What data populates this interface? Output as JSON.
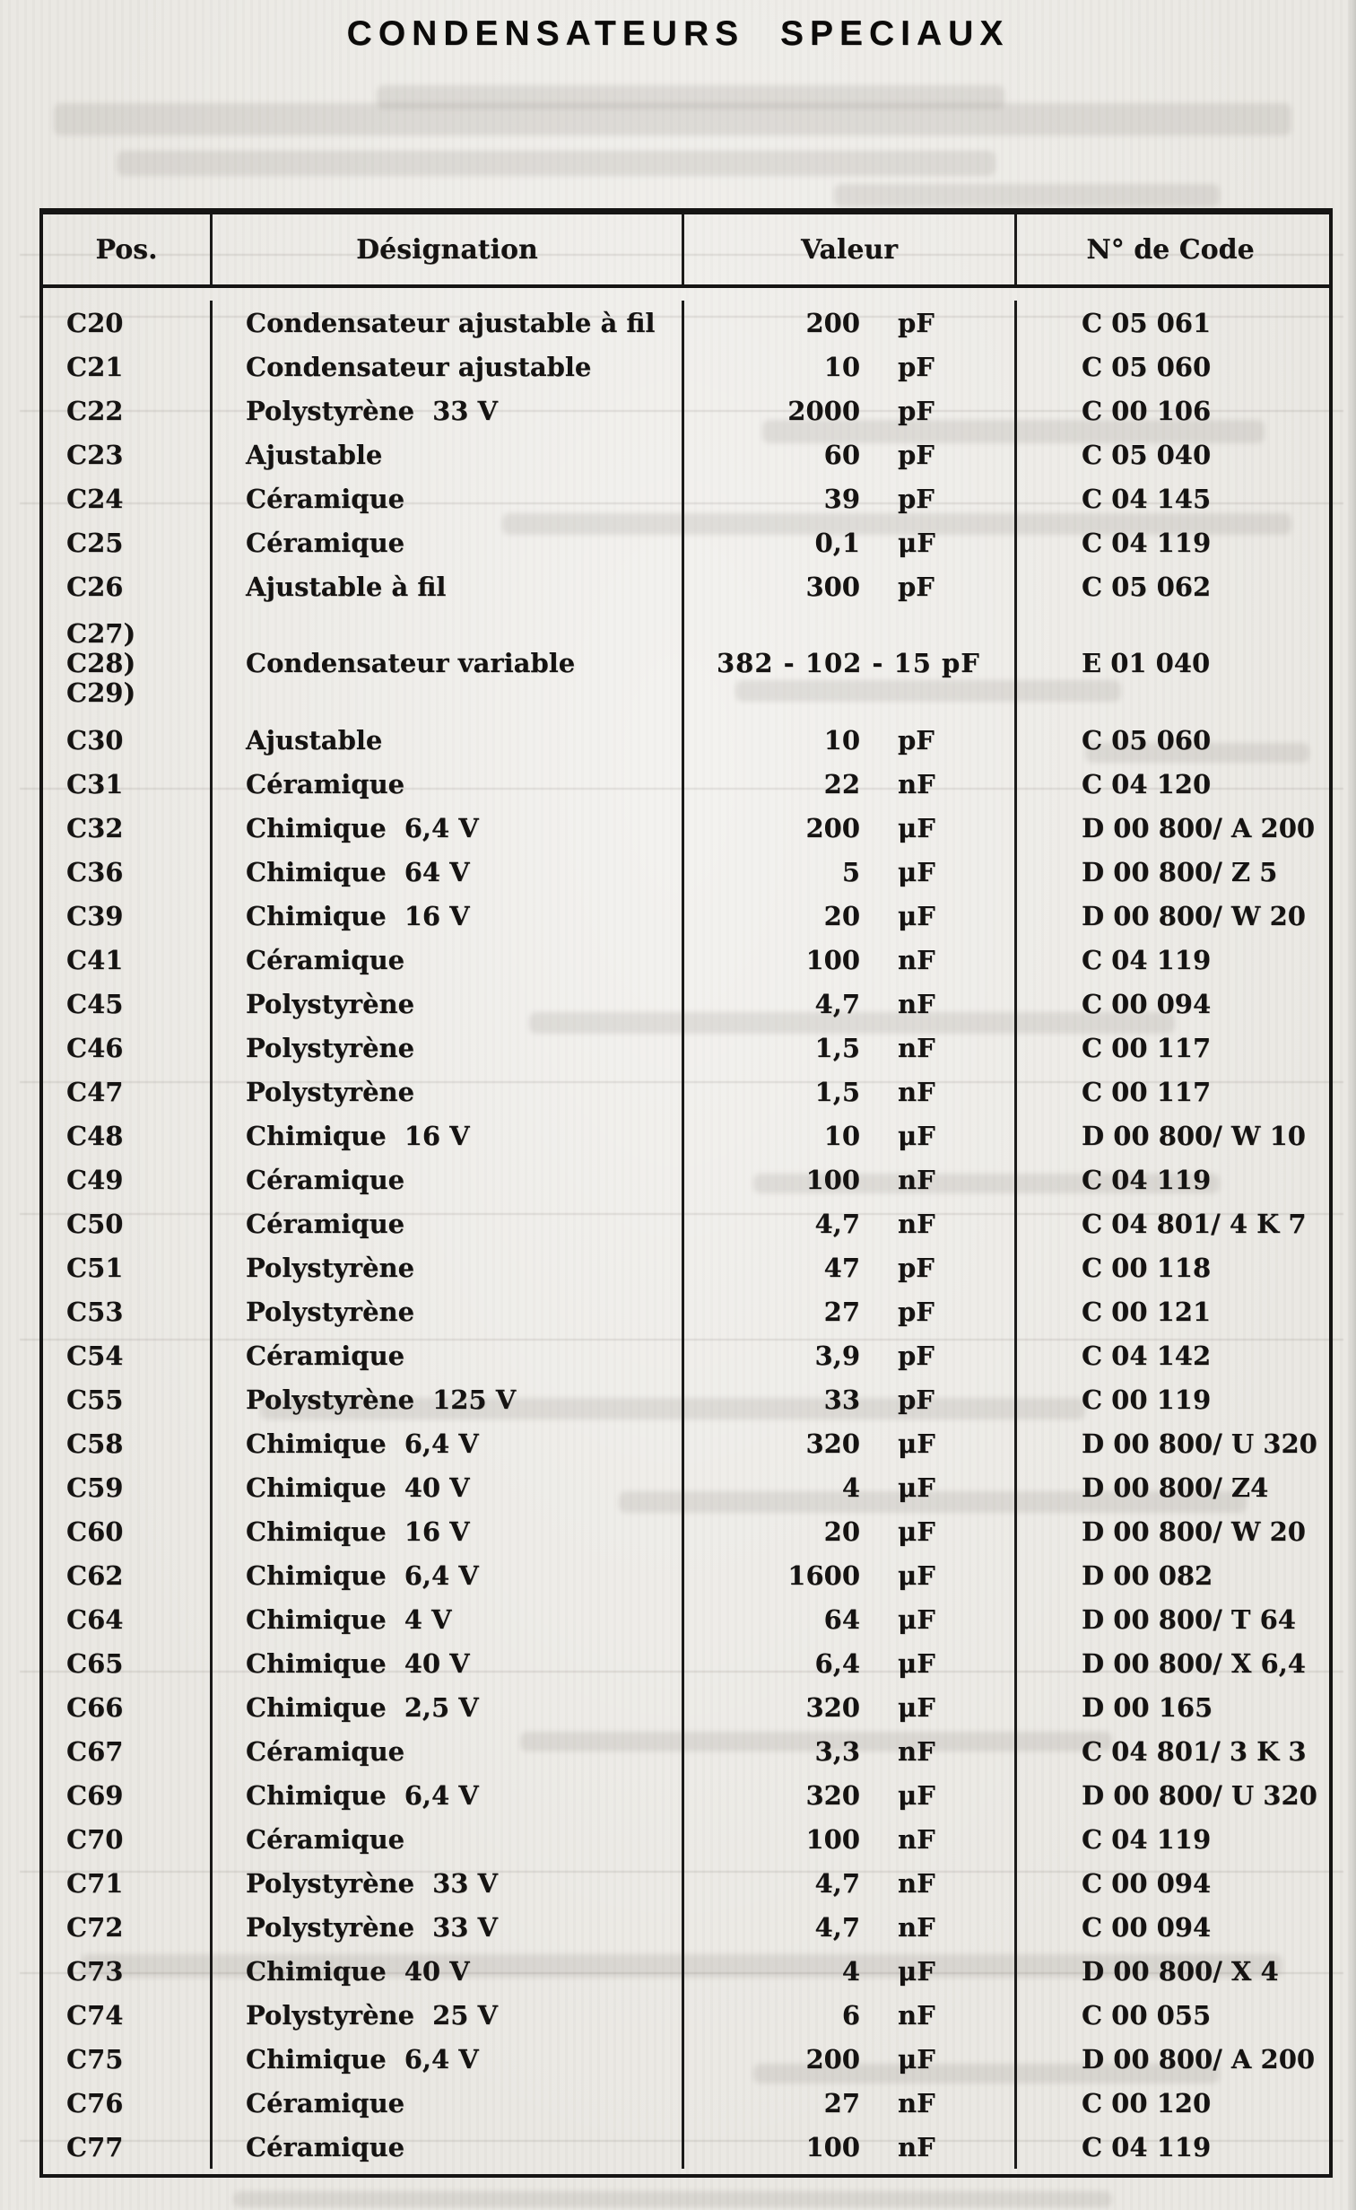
{
  "page": {
    "title": "CONDENSATEURS SPECIAUX",
    "paper_color": "#eae8e3",
    "ink_color": "#151312"
  },
  "table": {
    "columns": [
      "Pos.",
      "Désignation",
      "Valeur",
      "N° de Code"
    ],
    "rows": [
      {
        "pos": "C20",
        "designation": "Condensateur ajustable à fil",
        "value": "200",
        "unit": "pF",
        "code": "C 05 061"
      },
      {
        "pos": "C21",
        "designation": "Condensateur ajustable",
        "value": "10",
        "unit": "pF",
        "code": "C 05 060"
      },
      {
        "pos": "C22",
        "designation": "Polystyrène",
        "voltage": "33 V",
        "value": "2000",
        "unit": "pF",
        "code": "C 00 106"
      },
      {
        "pos": "C23",
        "designation": "Ajustable",
        "value": "60",
        "unit": "pF",
        "code": "C 05 040"
      },
      {
        "pos": "C24",
        "designation": "Céramique",
        "value": "39",
        "unit": "pF",
        "code": "C 04 145"
      },
      {
        "pos": "C25",
        "designation": "Céramique",
        "value": "0,1",
        "unit": "μF",
        "code": "C 04 119"
      },
      {
        "pos": "C26",
        "designation": "Ajustable à fil",
        "value": "300",
        "unit": "pF",
        "code": "C 05 062"
      },
      {
        "pos_lines": [
          "C27)",
          "C28)",
          "C29)"
        ],
        "designation": "Condensateur variable",
        "value_full": "382 - 102 - 15 pF",
        "code": "E 01 040"
      },
      {
        "pos": "C30",
        "designation": "Ajustable",
        "value": "10",
        "unit": "pF",
        "code": "C 05 060"
      },
      {
        "pos": "C31",
        "designation": "Céramique",
        "value": "22",
        "unit": "nF",
        "code": "C 04 120"
      },
      {
        "pos": "C32",
        "designation": "Chimique",
        "voltage": "6,4 V",
        "value": "200",
        "unit": "μF",
        "code": "D 00 800/ A 200"
      },
      {
        "pos": "C36",
        "designation": "Chimique",
        "voltage": "64  V",
        "value": "5",
        "unit": "μF",
        "code": "D 00 800/ Z 5"
      },
      {
        "pos": "C39",
        "designation": "Chimique",
        "voltage": "16  V",
        "value": "20",
        "unit": "μF",
        "code": "D 00 800/ W 20"
      },
      {
        "pos": "C41",
        "designation": "Céramique",
        "value": "100",
        "unit": "nF",
        "code": "C 04 119"
      },
      {
        "pos": "C45",
        "designation": "Polystyrène",
        "value": "4,7",
        "unit": "nF",
        "code": "C 00 094"
      },
      {
        "pos": "C46",
        "designation": "Polystyrène",
        "value": "1,5",
        "unit": "nF",
        "code": "C 00 117"
      },
      {
        "pos": "C47",
        "designation": "Polystyrène",
        "value": "1,5",
        "unit": "nF",
        "code": "C 00 117"
      },
      {
        "pos": "C48",
        "designation": "Chimique",
        "voltage": "16 V",
        "value": "10",
        "unit": "μF",
        "code": "D 00 800/ W 10"
      },
      {
        "pos": "C49",
        "designation": "Céramique",
        "value": "100",
        "unit": "nF",
        "code": "C 04 119"
      },
      {
        "pos": "C50",
        "designation": "Céramique",
        "value": "4,7",
        "unit": "nF",
        "code": "C 04 801/ 4 K 7"
      },
      {
        "pos": "C51",
        "designation": "Polystyrène",
        "value": "47",
        "unit": "pF",
        "code": "C 00 118"
      },
      {
        "pos": "C53",
        "designation": "Polystyrène",
        "value": "27",
        "unit": "pF",
        "code": "C 00 121"
      },
      {
        "pos": "C54",
        "designation": "Céramique",
        "value": "3,9",
        "unit": "pF",
        "code": "C 04 142"
      },
      {
        "pos": "C55",
        "designation": "Polystyrène",
        "voltage": "125 V",
        "value": "33",
        "unit": "pF",
        "code": "C 00 119"
      },
      {
        "pos": "C58",
        "designation": "Chimique",
        "voltage": "6,4 V",
        "value": "320",
        "unit": "μF",
        "code": "D 00 800/ U 320"
      },
      {
        "pos": "C59",
        "designation": "Chimique",
        "voltage": "40  V",
        "value": "4",
        "unit": "μF",
        "code": "D 00 800/ Z4"
      },
      {
        "pos": "C60",
        "designation": "Chimique",
        "voltage": "16  V",
        "value": "20",
        "unit": "μF",
        "code": "D 00 800/ W 20"
      },
      {
        "pos": "C62",
        "designation": "Chimique",
        "voltage": "6,4 V",
        "value": "1600",
        "unit": "μF",
        "code": "D 00 082"
      },
      {
        "pos": "C64",
        "designation": "Chimique",
        "voltage": "4   V",
        "value": "64",
        "unit": "μF",
        "code": "D 00 800/ T 64"
      },
      {
        "pos": "C65",
        "designation": "Chimique",
        "voltage": "40  V",
        "value": "6,4",
        "unit": "μF",
        "code": "D 00 800/ X 6,4"
      },
      {
        "pos": "C66",
        "designation": "Chimique",
        "voltage": "2,5 V",
        "value": "320",
        "unit": "μF",
        "code": "D 00 165"
      },
      {
        "pos": "C67",
        "designation": "Céramique",
        "value": "3,3",
        "unit": "nF",
        "code": "C 04 801/ 3 K 3"
      },
      {
        "pos": "C69",
        "designation": "Chimique",
        "voltage": "6,4 V",
        "value": "320",
        "unit": "μF",
        "code": "D 00 800/ U 320"
      },
      {
        "pos": "C70",
        "designation": "Céramique",
        "value": "100",
        "unit": "nF",
        "code": "C 04 119"
      },
      {
        "pos": "C71",
        "designation": "Polystyrène",
        "voltage": "33 V",
        "value": "4,7",
        "unit": "nF",
        "code": "C 00 094"
      },
      {
        "pos": "C72",
        "designation": "Polystyrène",
        "voltage": "33 V",
        "value": "4,7",
        "unit": "nF",
        "code": "C 00 094"
      },
      {
        "pos": "C73",
        "designation": "Chimique",
        "voltage": "40 V",
        "value": "4",
        "unit": "μF",
        "code": "D 00 800/ X 4"
      },
      {
        "pos": "C74",
        "designation": "Polystyrène",
        "voltage": "25 V",
        "value": "6",
        "unit": "nF",
        "code": "C 00 055"
      },
      {
        "pos": "C75",
        "designation": "Chimique",
        "voltage": "6,4 V",
        "value": "200",
        "unit": "μF",
        "code": "D 00 800/ A 200"
      },
      {
        "pos": "C76",
        "designation": "Céramique",
        "value": "27",
        "unit": "nF",
        "code": "C 00 120"
      },
      {
        "pos": "C77",
        "designation": "Céramique",
        "value": "100",
        "unit": "nF",
        "code": "C 04 119"
      }
    ]
  }
}
